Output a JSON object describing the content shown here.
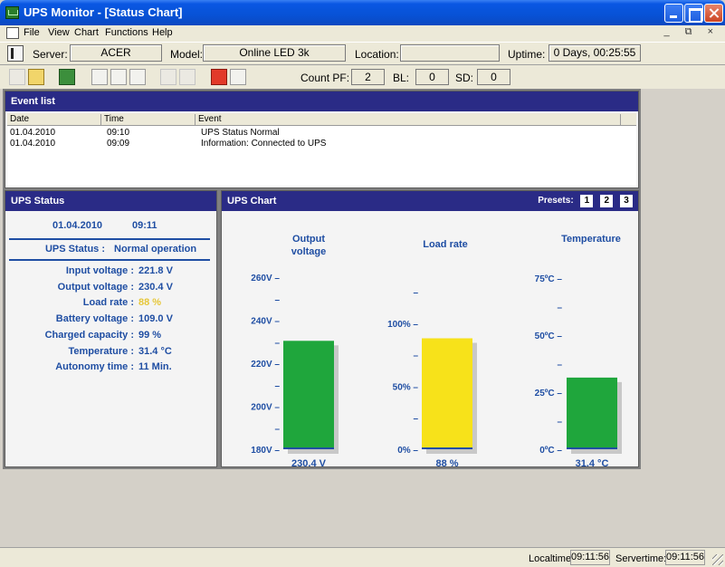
{
  "window": {
    "title": "UPS Monitor - [Status Chart]"
  },
  "menu": {
    "items": [
      "File",
      "View",
      "Chart",
      "Functions",
      "Help"
    ],
    "mdi_controls": "_ ⧉ ×"
  },
  "info": {
    "server_label": "Server:",
    "server_value": "ACER",
    "model_label": "Model:",
    "model_value": "Online LED 3k",
    "location_label": "Location:",
    "location_value": "",
    "uptime_label": "Uptime:",
    "uptime_value": "0 Days, 00:25:55"
  },
  "counters": {
    "pf_label": "Count PF:",
    "pf_value": "2",
    "bl_label": "BL:",
    "bl_value": "0",
    "sd_label": "SD:",
    "sd_value": "0"
  },
  "event_list": {
    "title": "Event list",
    "columns": [
      "Date",
      "Time",
      "Event"
    ],
    "rows": [
      {
        "date": "01.04.2010",
        "time": "09:10",
        "event": "UPS Status Normal"
      },
      {
        "date": "01.04.2010",
        "time": "09:09",
        "event": "Information: Connected to UPS"
      }
    ]
  },
  "ups_status": {
    "title": "UPS Status",
    "date": "01.04.2010",
    "time": "09:11",
    "status_label": "UPS Status :",
    "status_value": "Normal operation",
    "rows": [
      {
        "label": "Input voltage :",
        "value": "221.8 V"
      },
      {
        "label": "Output voltage :",
        "value": "230.4 V"
      },
      {
        "label": "Load rate :",
        "value": "88 %"
      },
      {
        "label": "Battery voltage :",
        "value": "109.0 V"
      },
      {
        "label": "Charged capacity :",
        "value": "99 %"
      },
      {
        "label": "Temperature :",
        "value": "31.4 °C"
      },
      {
        "label": "Autonomy time :",
        "value": "11 Min."
      }
    ]
  },
  "ups_chart": {
    "title": "UPS Chart",
    "presets_label": "Presets:",
    "presets": [
      "1",
      "2",
      "3"
    ]
  },
  "chart_data": [
    {
      "type": "bar",
      "title": "Output voltage",
      "categories": [
        "Output voltage"
      ],
      "values": [
        230.4
      ],
      "value_label": "230.4 V",
      "ylim": [
        180,
        260
      ],
      "ticks": [
        {
          "v": 180,
          "label": "180V –"
        },
        {
          "v": 190,
          "label": "–"
        },
        {
          "v": 200,
          "label": "200V –"
        },
        {
          "v": 210,
          "label": "–"
        },
        {
          "v": 220,
          "label": "220V –"
        },
        {
          "v": 230,
          "label": "–"
        },
        {
          "v": 240,
          "label": "240V –"
        },
        {
          "v": 250,
          "label": "–"
        },
        {
          "v": 260,
          "label": "260V –"
        }
      ],
      "color": "#1fa63c"
    },
    {
      "type": "bar",
      "title": "Load rate",
      "categories": [
        "Load rate"
      ],
      "values": [
        88
      ],
      "value_label": "88 %",
      "ylim": [
        0,
        125
      ],
      "ticks": [
        {
          "v": 0,
          "label": "0% –"
        },
        {
          "v": 25,
          "label": "–"
        },
        {
          "v": 50,
          "label": "50% –"
        },
        {
          "v": 75,
          "label": "–"
        },
        {
          "v": 100,
          "label": "100% –"
        },
        {
          "v": 125,
          "label": "–"
        }
      ],
      "color": "#f7e21a"
    },
    {
      "type": "bar",
      "title": "Temperature",
      "categories": [
        "Temperature"
      ],
      "values": [
        31.4
      ],
      "value_label": "31.4 °C",
      "ylim": [
        0,
        75
      ],
      "ticks": [
        {
          "v": 0,
          "label": "0ºC –"
        },
        {
          "v": 12.5,
          "label": "–"
        },
        {
          "v": 25,
          "label": "25ºC –"
        },
        {
          "v": 37.5,
          "label": "–"
        },
        {
          "v": 50,
          "label": "50ºC –"
        },
        {
          "v": 62.5,
          "label": "–"
        },
        {
          "v": 75,
          "label": "75ºC –"
        }
      ],
      "color": "#1fa63c"
    }
  ],
  "statusbar": {
    "localtime_label": "Localtime:",
    "localtime_value": "09:11:56",
    "servertime_label": "Servertime:",
    "servertime_value": "09:11:56"
  }
}
